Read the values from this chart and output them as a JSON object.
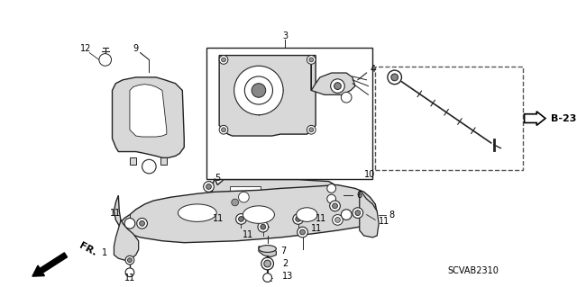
{
  "bg_color": "#ffffff",
  "diagram_code": "SCVAB2310",
  "b23_text": "B-23",
  "fr_text": "FR.",
  "line_color": "#222222",
  "light_gray": "#d8d8d8",
  "mid_gray": "#aaaaaa",
  "dark_gray": "#666666"
}
